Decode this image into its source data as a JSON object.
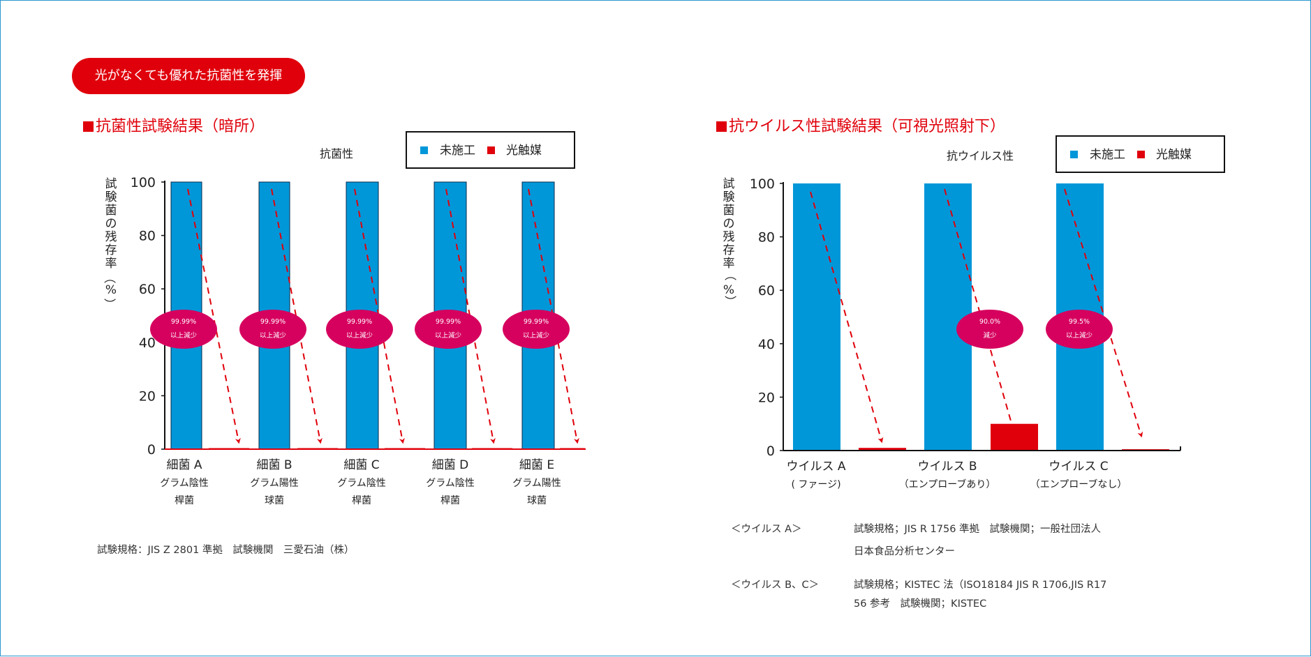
{
  "banner": {
    "text": "光がなくても優れた抗菌性を発揮"
  },
  "colors": {
    "untreated": "#0097d9",
    "photocatalyst": "#e0000b",
    "badge": "#d6005e",
    "arrow": "#e0000b",
    "border": "#2b96cf"
  },
  "left": {
    "section_title": "抗菌性試験結果（暗所）",
    "footnote": "試験規格：JIS Z 2801 準拠　試験機関　三愛石油（株）"
  },
  "right": {
    "section_title": "抗ウイルス性試験結果（可視光照射下）",
    "notes": [
      {
        "label": "＜ウイルス A＞",
        "lines": [
          "試験規格；JIS R 1756 準拠　試験機関；一般社団法人",
          "日本食品分析センター"
        ]
      },
      {
        "label": "＜ウイルス B、C＞",
        "lines": [
          "試験規格；KISTEC 法（ISO18184 JIS R 1706,JIS R17",
          " 56 参考　試験機関；KISTEC"
        ]
      }
    ]
  },
  "chart_data": [
    {
      "type": "bar",
      "title": "抗菌性",
      "ylabel": "試験菌の残存率（%）",
      "ylim": [
        0,
        100
      ],
      "yticks": [
        "0",
        "20",
        "40",
        "60",
        "80",
        "100"
      ],
      "legend": [
        "未施工",
        "光触媒"
      ],
      "legend_position": "top-right",
      "categories": [
        {
          "name": "細菌 A",
          "sub": [
            "グラム陰性",
            "桿菌"
          ]
        },
        {
          "name": "細菌 B",
          "sub": [
            "グラム陽性",
            "球菌"
          ]
        },
        {
          "name": "細菌 C",
          "sub": [
            "グラム陰性",
            "桿菌"
          ]
        },
        {
          "name": "細菌 D",
          "sub": [
            "グラム陰性",
            "桿菌"
          ]
        },
        {
          "name": "細菌 E",
          "sub": [
            "グラム陽性",
            "球菌"
          ]
        }
      ],
      "series": [
        {
          "name": "未施工",
          "values": [
            100,
            100,
            100,
            100,
            100
          ]
        },
        {
          "name": "光触媒",
          "values": [
            0.01,
            0.01,
            0.01,
            0.01,
            0.01
          ]
        }
      ],
      "annotations": [
        [
          "99.99%",
          "以上減少"
        ],
        [
          "99.99%",
          "以上減少"
        ],
        [
          "99.99%",
          "以上減少"
        ],
        [
          "99.99%",
          "以上減少"
        ],
        [
          "99.99%",
          "以上減少"
        ]
      ]
    },
    {
      "type": "bar",
      "title": "抗ウイルス性",
      "ylabel": "試験菌の残存率（%）",
      "ylim": [
        0,
        100
      ],
      "yticks": [
        "0",
        "20",
        "40",
        "60",
        "80",
        "100"
      ],
      "legend": [
        "未施工",
        "光触媒"
      ],
      "legend_position": "top-right",
      "categories": [
        {
          "name": "ウイルス A",
          "sub": [
            "( ファージ)"
          ]
        },
        {
          "name": "ウイルス B",
          "sub": [
            "（エンプローブあり）"
          ]
        },
        {
          "name": "ウイルス C",
          "sub": [
            "（エンプローブなし）"
          ]
        }
      ],
      "series": [
        {
          "name": "未施工",
          "values": [
            100,
            100,
            100
          ]
        },
        {
          "name": "光触媒",
          "values": [
            1,
            10,
            0.5
          ]
        }
      ],
      "annotations": [
        null,
        [
          "90.0%",
          "減少"
        ],
        [
          "99.5%",
          "以上減少"
        ]
      ]
    }
  ]
}
